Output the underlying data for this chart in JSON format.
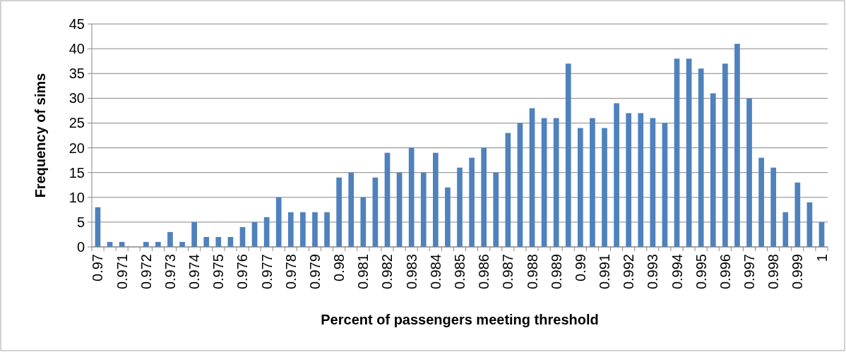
{
  "chart_data": {
    "type": "bar",
    "xlabel": "Percent of passengers meeting threshold",
    "ylabel": "Frequency of sims",
    "categories": [
      "0.97",
      null,
      "0.971",
      null,
      "0.972",
      null,
      "0.973",
      null,
      "0.974",
      null,
      "0.975",
      null,
      "0.976",
      null,
      "0.977",
      null,
      "0.978",
      null,
      "0.979",
      null,
      "0.98",
      null,
      "0.981",
      null,
      "0.982",
      null,
      "0.983",
      null,
      "0.984",
      null,
      "0.985",
      null,
      "0.986",
      null,
      "0.987",
      null,
      "0.988",
      null,
      "0.989",
      null,
      "0.99",
      null,
      "0.991",
      null,
      "0.992",
      null,
      "0.993",
      null,
      "0.994",
      null,
      "0.995",
      null,
      "0.996",
      null,
      "0.997",
      null,
      "0.998",
      null,
      "0.999",
      null,
      "1"
    ],
    "values": [
      8,
      1,
      1,
      0,
      1,
      1,
      3,
      1,
      5,
      2,
      2,
      2,
      4,
      5,
      6,
      10,
      7,
      7,
      7,
      7,
      14,
      15,
      10,
      14,
      19,
      15,
      20,
      15,
      19,
      12,
      16,
      18,
      20,
      15,
      23,
      25,
      28,
      26,
      26,
      37,
      24,
      26,
      24,
      29,
      27,
      27,
      26,
      25,
      38,
      38,
      36,
      31,
      37,
      41,
      30,
      18,
      16,
      7,
      13,
      9,
      5
    ],
    "color": "#4f81bd",
    "ylim": [
      0,
      45
    ],
    "yticks": [
      0,
      5,
      10,
      15,
      20,
      25,
      30,
      35,
      40,
      45
    ],
    "grid": "y"
  }
}
